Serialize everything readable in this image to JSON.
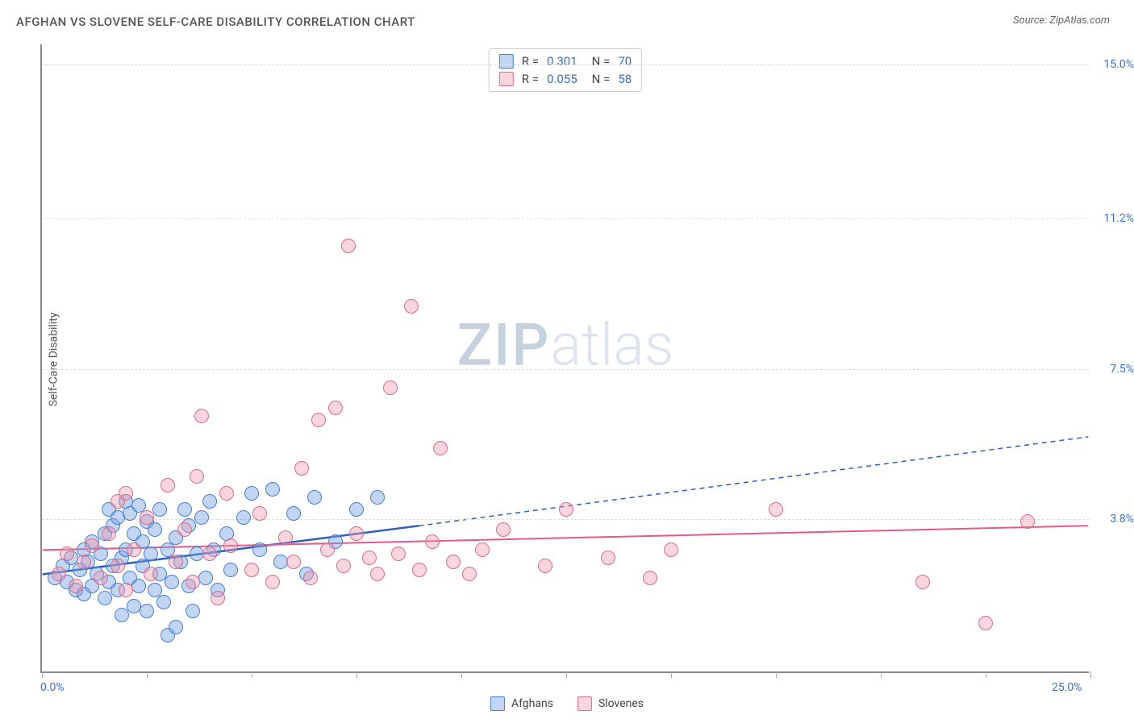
{
  "title": "AFGHAN VS SLOVENE SELF-CARE DISABILITY CORRELATION CHART",
  "source": "Source: ZipAtlas.com",
  "ylabel": "Self-Care Disability",
  "watermark_bold": "ZIP",
  "watermark_light": "atlas",
  "chart": {
    "type": "scatter",
    "xlim": [
      0,
      25
    ],
    "ylim": [
      0,
      15.5
    ],
    "x_start_label": "0.0%",
    "x_end_label": "25.0%",
    "y_gridlines": [
      {
        "y": 3.8,
        "label": "3.8%"
      },
      {
        "y": 7.5,
        "label": "7.5%"
      },
      {
        "y": 11.2,
        "label": "11.2%"
      },
      {
        "y": 15.0,
        "label": "15.0%"
      }
    ],
    "x_ticks": [
      0,
      2.5,
      5,
      7.5,
      10,
      12.5,
      15,
      17.5,
      20,
      22.5,
      25
    ],
    "background_color": "#ffffff",
    "grid_color": "#dddddd",
    "axis_color": "#888888",
    "series": [
      {
        "name": "Afghans",
        "label": "Afghans",
        "R": "0.301",
        "N": "70",
        "marker_fill": "rgba(120,165,230,0.45)",
        "marker_stroke": "#4a7fd0",
        "marker_radius": 9,
        "line_color": "#2f5fc0",
        "line_width": 2.5,
        "regression": {
          "x1": 0,
          "y1": 2.4,
          "x2_solid": 9.0,
          "y2_solid": 3.6,
          "x2": 25,
          "y2": 5.8
        },
        "points": [
          [
            0.3,
            2.3
          ],
          [
            0.5,
            2.6
          ],
          [
            0.6,
            2.2
          ],
          [
            0.7,
            2.8
          ],
          [
            0.8,
            2.0
          ],
          [
            0.9,
            2.5
          ],
          [
            1.0,
            3.0
          ],
          [
            1.0,
            1.9
          ],
          [
            1.1,
            2.7
          ],
          [
            1.2,
            2.1
          ],
          [
            1.2,
            3.2
          ],
          [
            1.3,
            2.4
          ],
          [
            1.4,
            2.9
          ],
          [
            1.5,
            1.8
          ],
          [
            1.5,
            3.4
          ],
          [
            1.6,
            2.2
          ],
          [
            1.6,
            4.0
          ],
          [
            1.7,
            2.6
          ],
          [
            1.7,
            3.6
          ],
          [
            1.8,
            2.0
          ],
          [
            1.8,
            3.8
          ],
          [
            1.9,
            1.4
          ],
          [
            1.9,
            2.8
          ],
          [
            2.0,
            3.0
          ],
          [
            2.0,
            4.2
          ],
          [
            2.1,
            2.3
          ],
          [
            2.1,
            3.9
          ],
          [
            2.2,
            1.6
          ],
          [
            2.2,
            3.4
          ],
          [
            2.3,
            2.1
          ],
          [
            2.3,
            4.1
          ],
          [
            2.4,
            2.6
          ],
          [
            2.4,
            3.2
          ],
          [
            2.5,
            1.5
          ],
          [
            2.5,
            3.7
          ],
          [
            2.6,
            2.9
          ],
          [
            2.7,
            2.0
          ],
          [
            2.7,
            3.5
          ],
          [
            2.8,
            2.4
          ],
          [
            2.8,
            4.0
          ],
          [
            2.9,
            1.7
          ],
          [
            3.0,
            3.0
          ],
          [
            3.0,
            0.9
          ],
          [
            3.1,
            2.2
          ],
          [
            3.2,
            3.3
          ],
          [
            3.2,
            1.1
          ],
          [
            3.3,
            2.7
          ],
          [
            3.4,
            4.0
          ],
          [
            3.5,
            2.1
          ],
          [
            3.5,
            3.6
          ],
          [
            3.6,
            1.5
          ],
          [
            3.7,
            2.9
          ],
          [
            3.8,
            3.8
          ],
          [
            3.9,
            2.3
          ],
          [
            4.0,
            4.2
          ],
          [
            4.1,
            3.0
          ],
          [
            4.2,
            2.0
          ],
          [
            4.4,
            3.4
          ],
          [
            4.5,
            2.5
          ],
          [
            4.8,
            3.8
          ],
          [
            5.0,
            4.4
          ],
          [
            5.2,
            3.0
          ],
          [
            5.5,
            4.5
          ],
          [
            5.7,
            2.7
          ],
          [
            6.0,
            3.9
          ],
          [
            6.3,
            2.4
          ],
          [
            6.5,
            4.3
          ],
          [
            7.0,
            3.2
          ],
          [
            7.5,
            4.0
          ],
          [
            8.0,
            4.3
          ]
        ]
      },
      {
        "name": "Slovenes",
        "label": "Slovenes",
        "R": "0.055",
        "N": "58",
        "marker_fill": "rgba(240,150,170,0.40)",
        "marker_stroke": "#d86f8f",
        "marker_radius": 9,
        "line_color": "#e55a8a",
        "line_width": 2,
        "regression": {
          "x1": 0,
          "y1": 3.0,
          "x2_solid": 25,
          "y2_solid": 3.6,
          "x2": 25,
          "y2": 3.6
        },
        "points": [
          [
            0.4,
            2.4
          ],
          [
            0.6,
            2.9
          ],
          [
            0.8,
            2.1
          ],
          [
            1.0,
            2.7
          ],
          [
            1.2,
            3.1
          ],
          [
            1.4,
            2.3
          ],
          [
            1.6,
            3.4
          ],
          [
            1.8,
            2.6
          ],
          [
            1.8,
            4.2
          ],
          [
            2.0,
            2.0
          ],
          [
            2.0,
            4.4
          ],
          [
            2.2,
            3.0
          ],
          [
            2.5,
            3.8
          ],
          [
            2.6,
            2.4
          ],
          [
            3.0,
            4.6
          ],
          [
            3.2,
            2.7
          ],
          [
            3.4,
            3.5
          ],
          [
            3.6,
            2.2
          ],
          [
            3.7,
            4.8
          ],
          [
            3.8,
            6.3
          ],
          [
            4.0,
            2.9
          ],
          [
            4.2,
            1.8
          ],
          [
            4.4,
            4.4
          ],
          [
            4.5,
            3.1
          ],
          [
            5.0,
            2.5
          ],
          [
            5.2,
            3.9
          ],
          [
            5.5,
            2.2
          ],
          [
            5.8,
            3.3
          ],
          [
            6.0,
            2.7
          ],
          [
            6.2,
            5.0
          ],
          [
            6.4,
            2.3
          ],
          [
            6.6,
            6.2
          ],
          [
            6.8,
            3.0
          ],
          [
            7.0,
            6.5
          ],
          [
            7.2,
            2.6
          ],
          [
            7.3,
            10.5
          ],
          [
            7.5,
            3.4
          ],
          [
            7.8,
            2.8
          ],
          [
            8.0,
            2.4
          ],
          [
            8.3,
            7.0
          ],
          [
            8.5,
            2.9
          ],
          [
            8.8,
            9.0
          ],
          [
            9.0,
            2.5
          ],
          [
            9.3,
            3.2
          ],
          [
            9.5,
            5.5
          ],
          [
            9.8,
            2.7
          ],
          [
            10.2,
            2.4
          ],
          [
            10.5,
            3.0
          ],
          [
            11.0,
            3.5
          ],
          [
            12.0,
            2.6
          ],
          [
            12.5,
            4.0
          ],
          [
            13.5,
            2.8
          ],
          [
            14.5,
            2.3
          ],
          [
            15.0,
            3.0
          ],
          [
            17.5,
            4.0
          ],
          [
            21.0,
            2.2
          ],
          [
            22.5,
            1.2
          ],
          [
            23.5,
            3.7
          ]
        ]
      }
    ],
    "rn_legend": {
      "r_label": "R  =",
      "n_label": "N  ="
    },
    "bottom_legend_series": [
      "Afghans",
      "Slovenes"
    ]
  }
}
